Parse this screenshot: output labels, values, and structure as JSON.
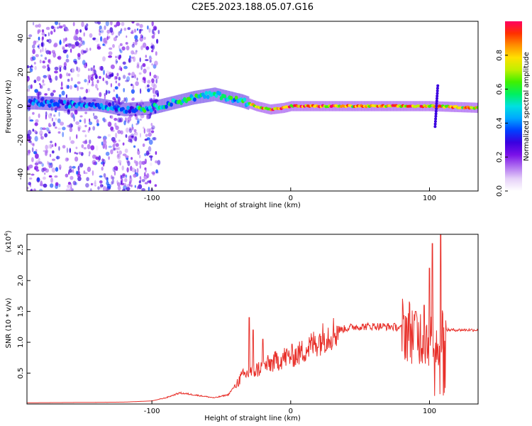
{
  "title": "C2E5.2023.188.05.07.G16",
  "colors": {
    "snr_line": "#e8302a",
    "axis": "#000000",
    "colormap": [
      "#ffffff",
      "#e6d2f8",
      "#b070f0",
      "#7a10e8",
      "#3a00e0",
      "#0040ff",
      "#00a8ff",
      "#00e0e0",
      "#00f060",
      "#40f000",
      "#c0f000",
      "#ffe000",
      "#ff9000",
      "#ff3000",
      "#ff0060"
    ]
  },
  "chart_data": [
    {
      "type": "heatmap",
      "title": "C2E5.2023.188.05.07.G16",
      "xlabel": "Height of straight line (km)",
      "ylabel": "Frequency (Hz)",
      "xlim": [
        -190,
        135
      ],
      "ylim": [
        -50,
        50
      ],
      "xticks": [
        -100,
        0,
        100
      ],
      "yticks": [
        -40,
        -20,
        0,
        20,
        40
      ],
      "colorbar": {
        "label": "Normalized spectral amplitude",
        "range": [
          0,
          1
        ],
        "ticks": [
          "0.0",
          "0.2",
          "0.4",
          "0.6",
          "0.8"
        ]
      },
      "ridge": [
        {
          "x": -185,
          "y": 2
        },
        {
          "x": -160,
          "y": 1
        },
        {
          "x": -140,
          "y": 1
        },
        {
          "x": -120,
          "y": -2
        },
        {
          "x": -100,
          "y": -1
        },
        {
          "x": -85,
          "y": 2
        },
        {
          "x": -70,
          "y": 5
        },
        {
          "x": -55,
          "y": 7
        },
        {
          "x": -45,
          "y": 5
        },
        {
          "x": -35,
          "y": 3
        },
        {
          "x": -25,
          "y": 0
        },
        {
          "x": -15,
          "y": -2
        },
        {
          "x": -5,
          "y": -1
        },
        {
          "x": 0,
          "y": 0
        },
        {
          "x": 50,
          "y": 0
        },
        {
          "x": 100,
          "y": 0
        },
        {
          "x": 135,
          "y": -1
        }
      ],
      "grid": false
    },
    {
      "type": "line",
      "xlabel": "Height of straight line (km)",
      "ylabel": "SNR (10 * v/v)",
      "y_scale_note": "(x10",
      "y_scale_exp": "4",
      "xlim": [
        -190,
        135
      ],
      "ylim": [
        0,
        2.75
      ],
      "xticks": [
        -100,
        0,
        100
      ],
      "yticks": [
        0.5,
        1.0,
        1.5,
        2.0,
        2.5
      ],
      "yticklabels": [
        "0.5",
        "1.0",
        "1.5",
        "2.0",
        "2.5"
      ],
      "envelope": [
        {
          "x": -190,
          "y": 0.02
        },
        {
          "x": -120,
          "y": 0.03
        },
        {
          "x": -100,
          "y": 0.05
        },
        {
          "x": -90,
          "y": 0.1
        },
        {
          "x": -80,
          "y": 0.18
        },
        {
          "x": -70,
          "y": 0.15
        },
        {
          "x": -55,
          "y": 0.1
        },
        {
          "x": -45,
          "y": 0.15
        },
        {
          "x": -35,
          "y": 0.45
        },
        {
          "x": -25,
          "y": 0.55
        },
        {
          "x": -15,
          "y": 0.65
        },
        {
          "x": -5,
          "y": 0.75
        },
        {
          "x": 5,
          "y": 0.8
        },
        {
          "x": 15,
          "y": 0.95
        },
        {
          "x": 25,
          "y": 1.1
        },
        {
          "x": 35,
          "y": 1.2
        },
        {
          "x": 45,
          "y": 1.25
        },
        {
          "x": 60,
          "y": 1.26
        },
        {
          "x": 75,
          "y": 1.25
        },
        {
          "x": 85,
          "y": 1.2
        },
        {
          "x": 95,
          "y": 1.1
        },
        {
          "x": 105,
          "y": 1.0
        },
        {
          "x": 110,
          "y": 1.2
        },
        {
          "x": 135,
          "y": 1.2
        }
      ],
      "peaks": [
        {
          "x": -30,
          "y": 1.4
        },
        {
          "x": -27,
          "y": 1.2
        },
        {
          "x": -20,
          "y": 1.05
        },
        {
          "x": 102,
          "y": 2.6
        },
        {
          "x": 108,
          "y": 2.75
        },
        {
          "x": 100,
          "y": 2.2
        },
        {
          "x": 96,
          "y": 1.6
        },
        {
          "x": 90,
          "y": 1.5
        }
      ],
      "grid": false
    }
  ]
}
